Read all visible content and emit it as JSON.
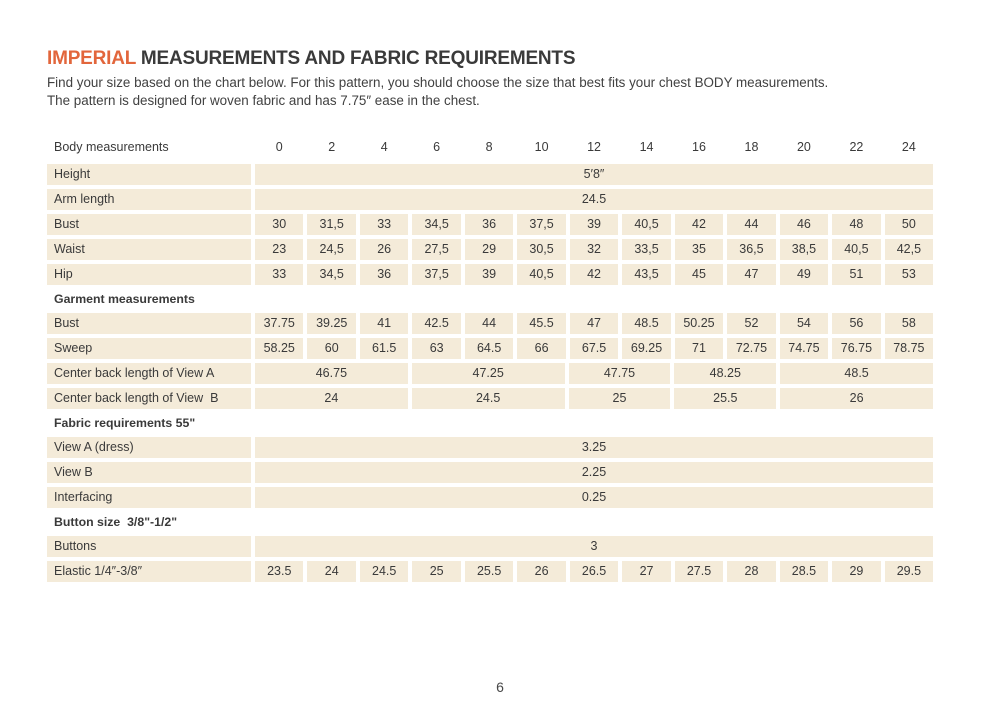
{
  "colors": {
    "accent": "#e2663c",
    "row_bg": "#f4ebd9",
    "text": "#3a3a3a",
    "page_bg": "#ffffff"
  },
  "header": {
    "title_accent": "IMPERIAL",
    "title_rest": " MEASUREMENTS AND FABRIC REQUIREMENTS",
    "subtitle_line1": "Find your size based on the chart below. For this pattern, you should choose the size that best fits your chest BODY measurements.",
    "subtitle_line2": "The pattern is designed for woven fabric and has 7.75″ ease in the chest."
  },
  "table": {
    "header": {
      "label": "Body measurements",
      "sizes": [
        "0",
        "2",
        "4",
        "6",
        "8",
        "10",
        "12",
        "14",
        "16",
        "18",
        "20",
        "22",
        "24"
      ]
    },
    "rows": [
      {
        "type": "merged",
        "label": "Height",
        "value": "5′8″"
      },
      {
        "type": "merged",
        "label": "Arm length",
        "value": "24.5"
      },
      {
        "type": "cells",
        "label": "Bust",
        "values": [
          "30",
          "31,5",
          "33",
          "34,5",
          "36",
          "37,5",
          "39",
          "40,5",
          "42",
          "44",
          "46",
          "48",
          "50"
        ]
      },
      {
        "type": "cells",
        "label": "Waist",
        "values": [
          "23",
          "24,5",
          "26",
          "27,5",
          "29",
          "30,5",
          "32",
          "33,5",
          "35",
          "36,5",
          "38,5",
          "40,5",
          "42,5"
        ]
      },
      {
        "type": "cells",
        "label": "Hip",
        "values": [
          "33",
          "34,5",
          "36",
          "37,5",
          "39",
          "40,5",
          "42",
          "43,5",
          "45",
          "47",
          "49",
          "51",
          "53"
        ]
      },
      {
        "type": "section",
        "label": "Garment measurements"
      },
      {
        "type": "cells",
        "label": "Bust",
        "values": [
          "37.75",
          "39.25",
          "41",
          "42.5",
          "44",
          "45.5",
          "47",
          "48.5",
          "50.25",
          "52",
          "54",
          "56",
          "58"
        ]
      },
      {
        "type": "cells",
        "label": "Sweep",
        "values": [
          "58.25",
          "60",
          "61.5",
          "63",
          "64.5",
          "66",
          "67.5",
          "69.25",
          "71",
          "72.75",
          "74.75",
          "76.75",
          "78.75"
        ]
      },
      {
        "type": "groups",
        "label": "Center back length of View A",
        "values": [
          "46.75",
          "47.25",
          "47.75",
          "48.25",
          "48.5"
        ],
        "spans": [
          3,
          3,
          2,
          2,
          3
        ]
      },
      {
        "type": "groups",
        "label": "Center back length of View  B",
        "values": [
          "24",
          "24.5",
          "25",
          "25.5",
          "26"
        ],
        "spans": [
          3,
          3,
          2,
          2,
          3
        ]
      },
      {
        "type": "section",
        "label": "Fabric requirements 55\""
      },
      {
        "type": "merged",
        "label": "View A (dress)",
        "value": "3.25"
      },
      {
        "type": "merged",
        "label": "View B",
        "value": "2.25"
      },
      {
        "type": "merged",
        "label": "Interfacing",
        "value": "0.25"
      },
      {
        "type": "section",
        "label": "Button size  3/8\"-1/2\""
      },
      {
        "type": "merged",
        "label": "Buttons",
        "value": "3"
      },
      {
        "type": "cells",
        "label": "Elastic 1/4″-3/8″",
        "values": [
          "23.5",
          "24",
          "24.5",
          "25",
          "25.5",
          "26",
          "26.5",
          "27",
          "27.5",
          "28",
          "28.5",
          "29",
          "29.5"
        ]
      }
    ]
  },
  "footer": {
    "page_number": "6"
  }
}
